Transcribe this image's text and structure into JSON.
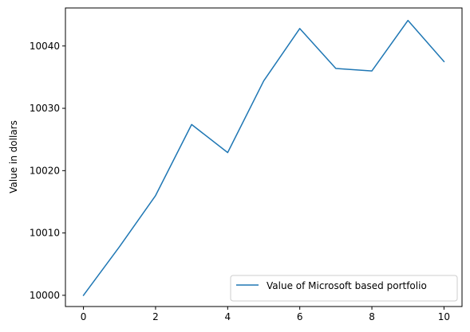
{
  "chart_data": {
    "type": "line",
    "title": "",
    "xlabel": "",
    "ylabel": "Value in dollars",
    "xlim": [
      -0.5,
      10.5
    ],
    "ylim": [
      9998.2,
      10046.1
    ],
    "x_ticks": [
      0,
      2,
      4,
      6,
      8,
      10
    ],
    "y_ticks": [
      10000,
      10010,
      10020,
      10030,
      10040
    ],
    "grid": false,
    "legend_position": "lower-right",
    "series": [
      {
        "name": "Value of Microsoft based portfolio",
        "color": "#1f77b4",
        "x": [
          0,
          1,
          2,
          3,
          4,
          5,
          6,
          7,
          8,
          9,
          10
        ],
        "y": [
          10000.0,
          10007.8,
          10016.0,
          10027.4,
          10022.9,
          10034.4,
          10042.8,
          10036.4,
          10036.0,
          10044.1,
          10037.5
        ]
      }
    ]
  }
}
